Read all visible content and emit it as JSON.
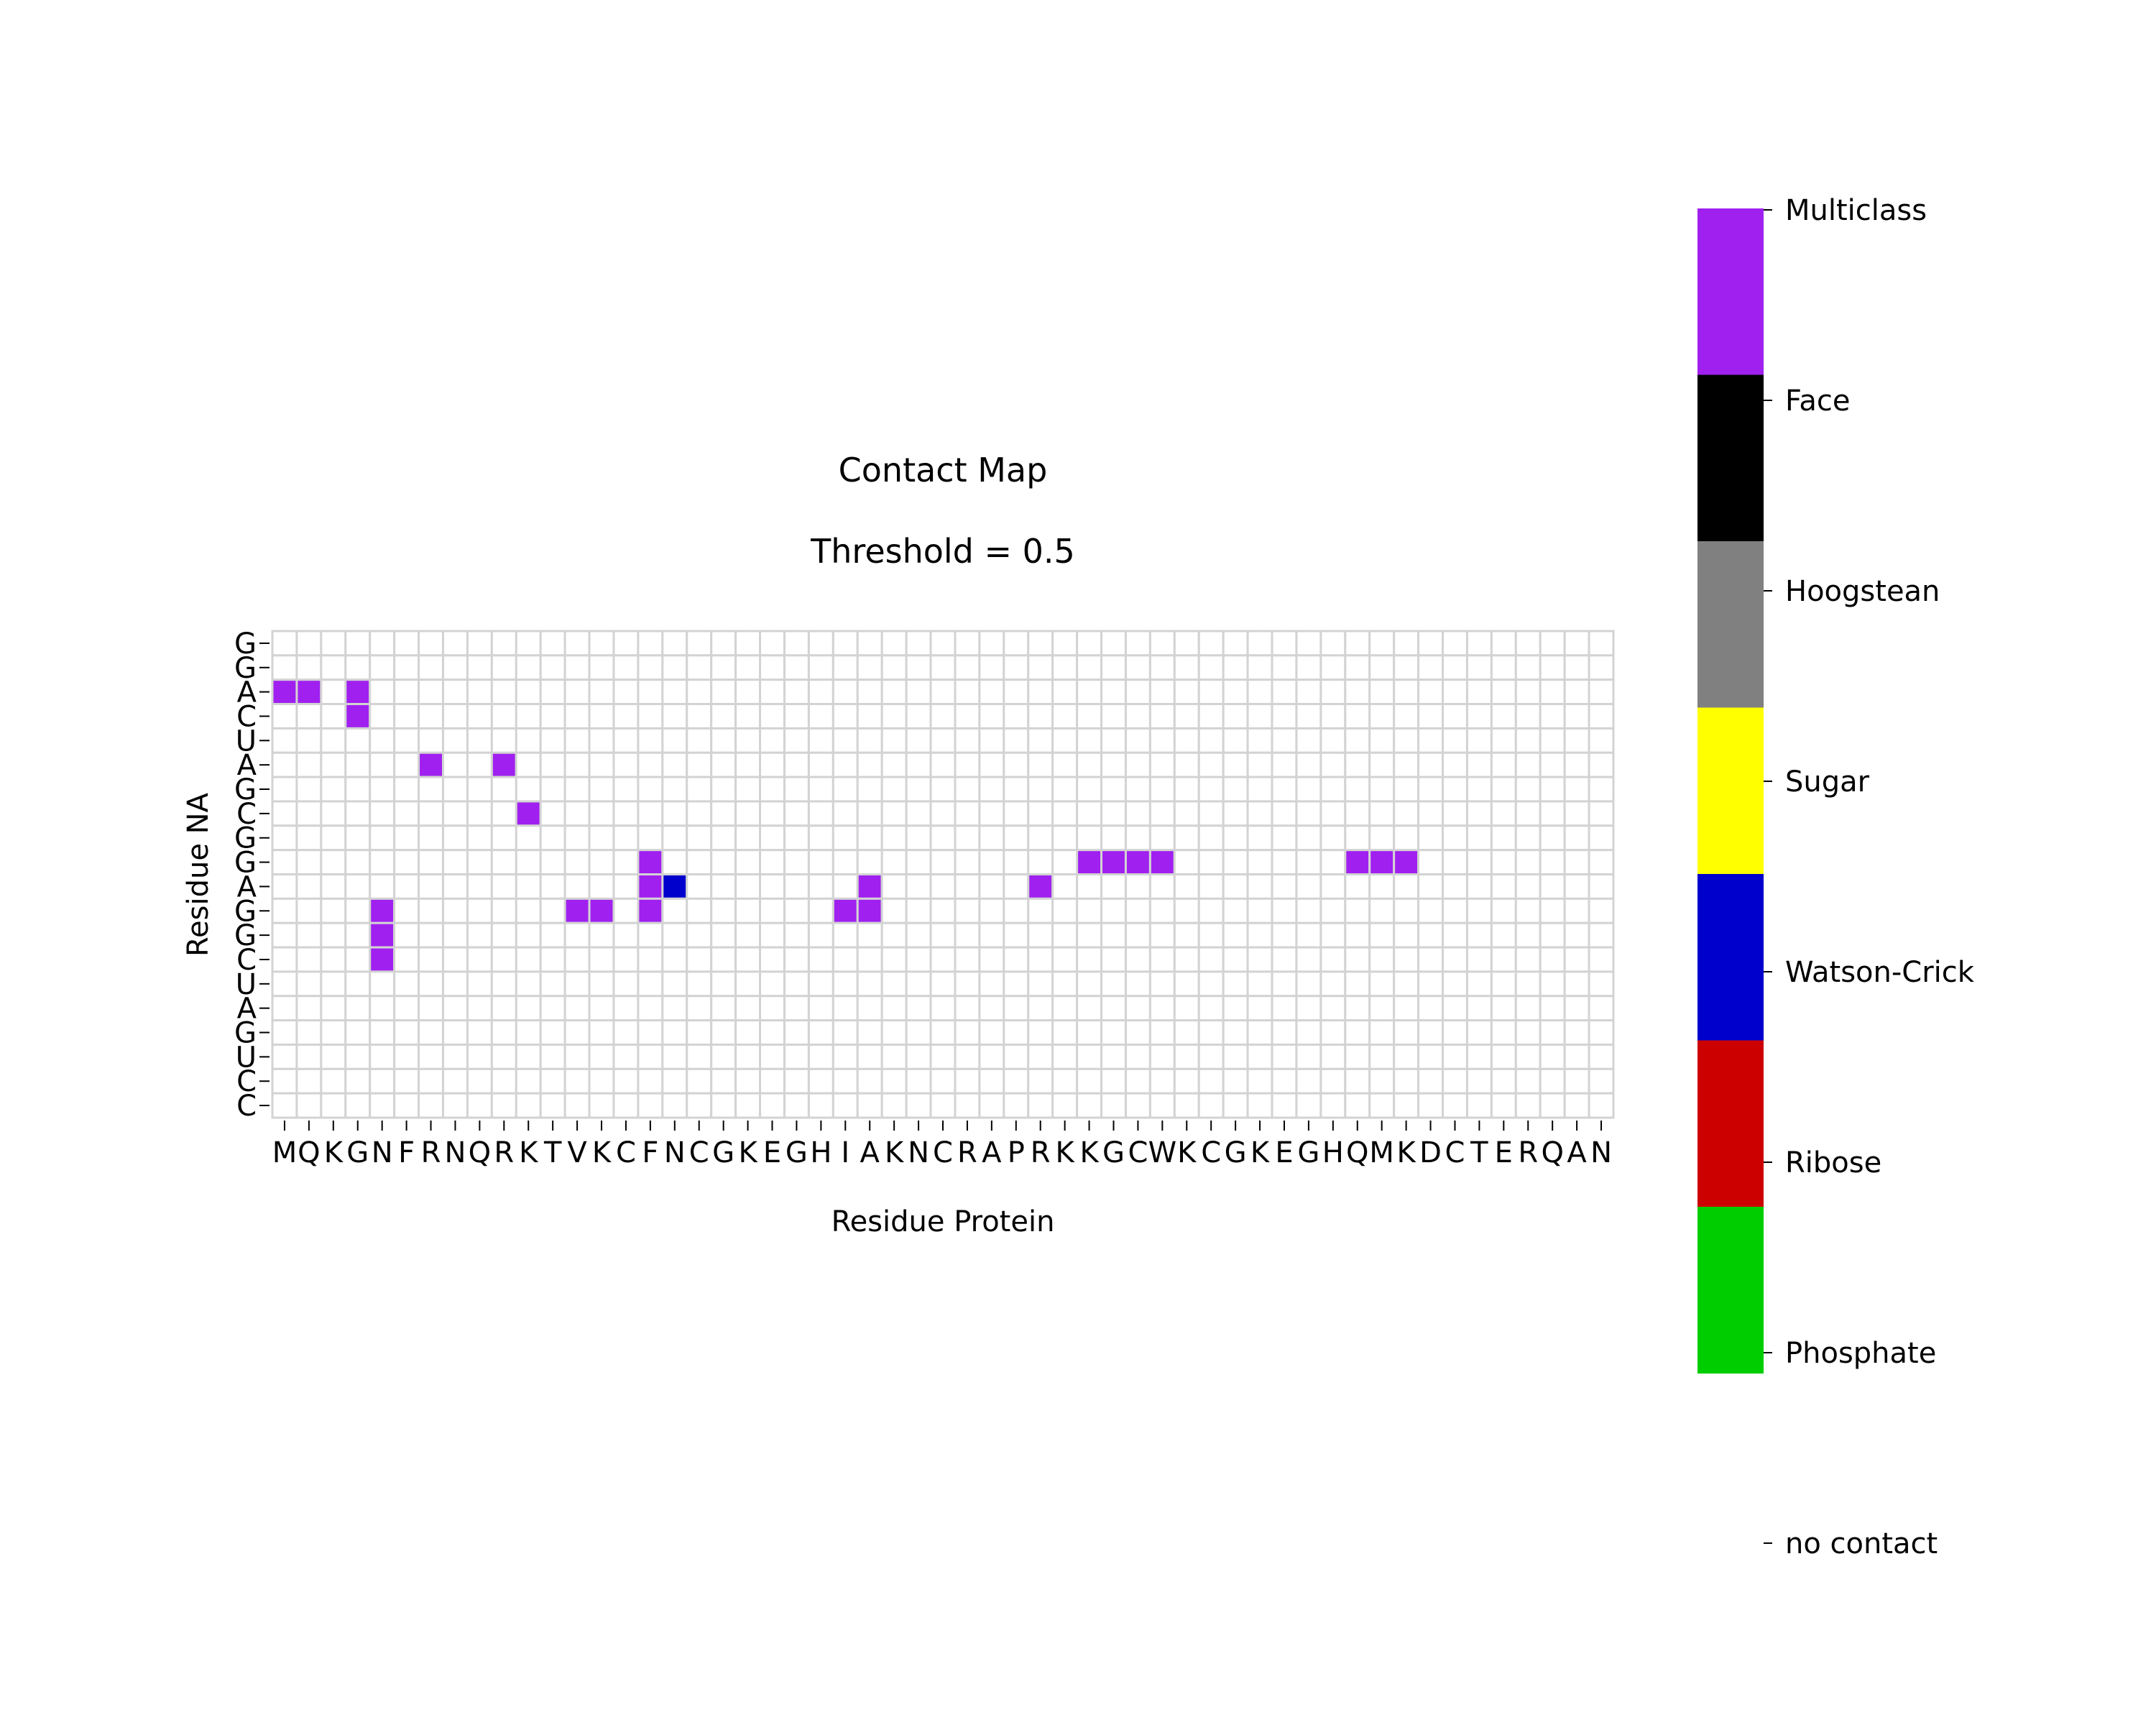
{
  "chart_data": {
    "type": "heatmap",
    "title": "Contact Map",
    "subtitle": "Threshold = 0.5",
    "xlabel": "Residue Protein",
    "ylabel": "Residue NA",
    "x_categories": [
      "M",
      "Q",
      "K",
      "G",
      "N",
      "F",
      "R",
      "N",
      "Q",
      "R",
      "K",
      "T",
      "V",
      "K",
      "C",
      "F",
      "N",
      "C",
      "G",
      "K",
      "E",
      "G",
      "H",
      "I",
      "A",
      "K",
      "N",
      "C",
      "R",
      "A",
      "P",
      "R",
      "K",
      "K",
      "G",
      "C",
      "W",
      "K",
      "C",
      "G",
      "K",
      "E",
      "G",
      "H",
      "Q",
      "M",
      "K",
      "D",
      "C",
      "T",
      "E",
      "R",
      "Q",
      "A",
      "N"
    ],
    "y_categories": [
      "G",
      "G",
      "A",
      "C",
      "U",
      "A",
      "G",
      "C",
      "G",
      "G",
      "A",
      "G",
      "G",
      "C",
      "U",
      "A",
      "G",
      "U",
      "C",
      "C"
    ],
    "contacts": [
      {
        "x": 0,
        "y": 2,
        "class": "Multiclass"
      },
      {
        "x": 1,
        "y": 2,
        "class": "Multiclass"
      },
      {
        "x": 3,
        "y": 2,
        "class": "Multiclass"
      },
      {
        "x": 3,
        "y": 3,
        "class": "Multiclass"
      },
      {
        "x": 6,
        "y": 5,
        "class": "Multiclass"
      },
      {
        "x": 9,
        "y": 5,
        "class": "Multiclass"
      },
      {
        "x": 10,
        "y": 7,
        "class": "Multiclass"
      },
      {
        "x": 15,
        "y": 9,
        "class": "Multiclass"
      },
      {
        "x": 33,
        "y": 9,
        "class": "Multiclass"
      },
      {
        "x": 34,
        "y": 9,
        "class": "Multiclass"
      },
      {
        "x": 35,
        "y": 9,
        "class": "Multiclass"
      },
      {
        "x": 36,
        "y": 9,
        "class": "Multiclass"
      },
      {
        "x": 44,
        "y": 9,
        "class": "Multiclass"
      },
      {
        "x": 45,
        "y": 9,
        "class": "Multiclass"
      },
      {
        "x": 46,
        "y": 9,
        "class": "Multiclass"
      },
      {
        "x": 15,
        "y": 10,
        "class": "Multiclass"
      },
      {
        "x": 16,
        "y": 10,
        "class": "Watson-Crick"
      },
      {
        "x": 24,
        "y": 10,
        "class": "Multiclass"
      },
      {
        "x": 31,
        "y": 10,
        "class": "Multiclass"
      },
      {
        "x": 4,
        "y": 11,
        "class": "Multiclass"
      },
      {
        "x": 12,
        "y": 11,
        "class": "Multiclass"
      },
      {
        "x": 13,
        "y": 11,
        "class": "Multiclass"
      },
      {
        "x": 15,
        "y": 11,
        "class": "Multiclass"
      },
      {
        "x": 23,
        "y": 11,
        "class": "Multiclass"
      },
      {
        "x": 24,
        "y": 11,
        "class": "Multiclass"
      },
      {
        "x": 4,
        "y": 12,
        "class": "Multiclass"
      },
      {
        "x": 4,
        "y": 13,
        "class": "Multiclass"
      }
    ],
    "legend": {
      "placement": "right",
      "classes": [
        {
          "label": "Multiclass",
          "color": "#a020f0"
        },
        {
          "label": "Face",
          "color": "#000000"
        },
        {
          "label": "Hoogstean",
          "color": "#808080"
        },
        {
          "label": "Sugar",
          "color": "#ffff00"
        },
        {
          "label": "Watson-Crick",
          "color": "#0000cd"
        },
        {
          "label": "Ribose",
          "color": "#cd0000"
        },
        {
          "label": "Phosphate",
          "color": "#00cd00"
        },
        {
          "label": "no contact",
          "color": "#ffffff"
        }
      ]
    },
    "grid": true,
    "grid_color": "#d3d3d3"
  }
}
